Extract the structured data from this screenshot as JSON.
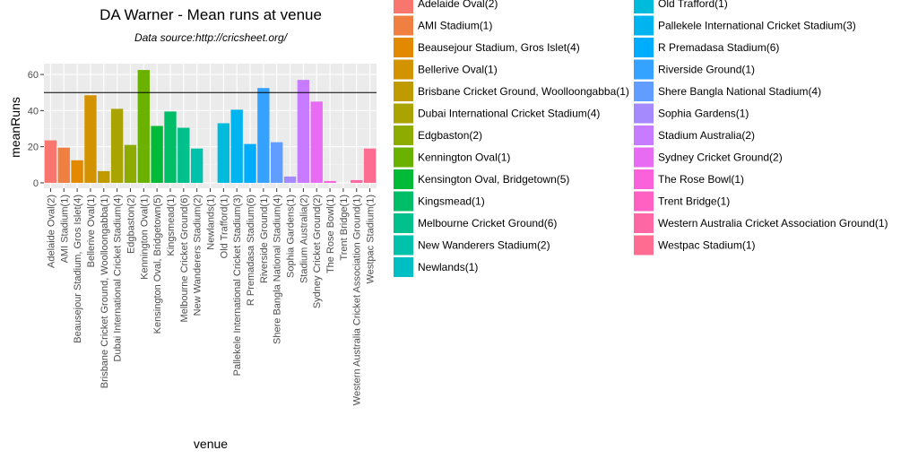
{
  "chart_data": {
    "type": "bar",
    "title": "DA Warner - Mean runs at venue",
    "subtitle": "Data source:http://cricsheet.org/",
    "xlabel": "venue",
    "ylabel": "meanRuns",
    "ylim": [
      -3,
      66
    ],
    "yticks": [
      0,
      20,
      40,
      60
    ],
    "reference_line": 50,
    "grid": true,
    "legend_position": "right",
    "categories": [
      "Adelaide Oval(2)",
      "AMI Stadium(1)",
      "Beausejour Stadium, Gros Islet(4)",
      "Bellerive Oval(1)",
      "Brisbane Cricket Ground, Woolloongabba(1)",
      "Dubai International Cricket Stadium(4)",
      "Edgbaston(2)",
      "Kennington Oval(1)",
      "Kensington Oval, Bridgetown(5)",
      "Kingsmead(1)",
      "Melbourne Cricket Ground(6)",
      "New Wanderers Stadium(2)",
      "Newlands(1)",
      "Old Trafford(1)",
      "Pallekele International Cricket Stadium(3)",
      "R Premadasa Stadium(6)",
      "Riverside Ground(1)",
      "Shere Bangla National Stadium(4)",
      "Sophia Gardens(1)",
      "Stadium Australia(2)",
      "Sydney Cricket Ground(2)",
      "The Rose Bowl(1)",
      "Trent Bridge(1)",
      "Western Australia Cricket Association Ground(1)",
      "Westpac Stadium(1)"
    ],
    "values": [
      23.5,
      19.5,
      12.5,
      48.5,
      6.5,
      41,
      21,
      62.5,
      31.5,
      39.5,
      30.5,
      19,
      0,
      33,
      40.5,
      21.5,
      52.5,
      22.5,
      3.5,
      57,
      45,
      1,
      0,
      1.5,
      19
    ],
    "colors": [
      "#F8766D",
      "#EF8042",
      "#E38900",
      "#D39200",
      "#C09B00",
      "#A9A400",
      "#8EAB00",
      "#6BB100",
      "#00BA38",
      "#00BE67",
      "#00C08B",
      "#00C1AA",
      "#00BFC4",
      "#00BBDC",
      "#00B4EF",
      "#00ACFC",
      "#35A2FF",
      "#619CFF",
      "#A58AFF",
      "#C77CFF",
      "#E76BF3",
      "#FA62DB",
      "#FF61C3",
      "#FF67A4",
      "#FF6C91"
    ]
  }
}
